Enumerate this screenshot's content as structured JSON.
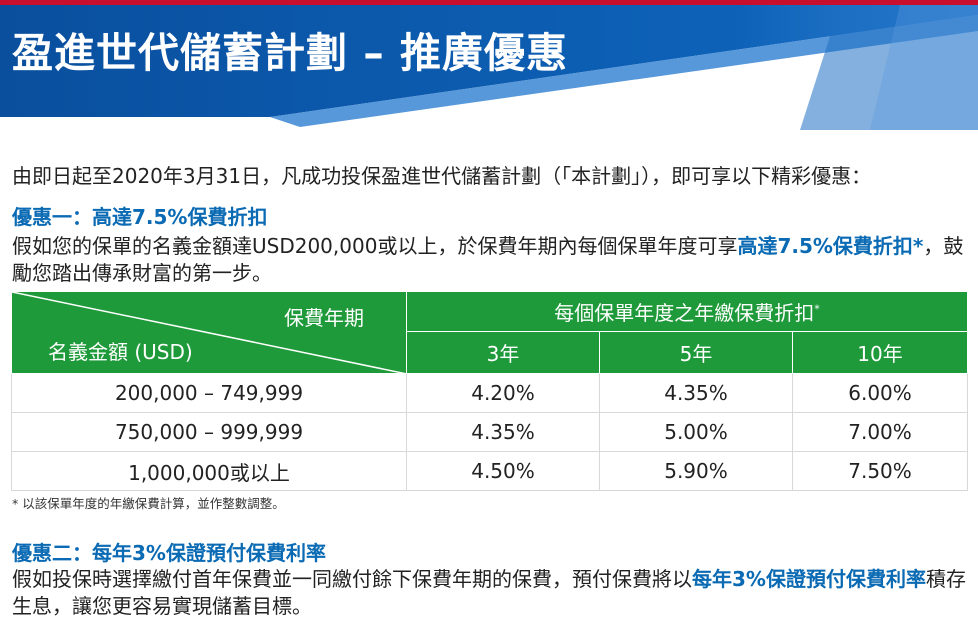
{
  "title": "盈進世代儲蓄計劃 – 推廣優惠",
  "colors": {
    "banner_blue": "#0b5cab",
    "accent_red": "#c8102e",
    "highlight_blue": "#0a6ab3",
    "table_green": "#1f9a3a"
  },
  "intro": "由即日起至2020年3月31日，凡成功投保盈進世代儲蓄計劃（「本計劃」），即可享以下精彩優惠：",
  "offer1": {
    "heading": "優惠一：高達7.5%保費折扣",
    "text_before": "假如您的保單的名義金額達USD200,000或以上，於保費年期內每個保單年度可享",
    "highlight": "高達7.5%保費折扣*",
    "text_after": "，鼓勵您踏出傳承財富的第一步。"
  },
  "table": {
    "corner_top": "保費年期",
    "corner_bottom": "名義金額 (USD)",
    "group_header": "每個保單年度之年繳保費折扣",
    "group_header_mark": "*",
    "columns": [
      "3年",
      "5年",
      "10年"
    ],
    "rows": [
      {
        "amount": "200,000 – 749,999",
        "values": [
          "4.20%",
          "4.35%",
          "6.00%"
        ]
      },
      {
        "amount": "750,000 – 999,999",
        "values": [
          "4.35%",
          "5.00%",
          "7.00%"
        ]
      },
      {
        "amount": "1,000,000或以上",
        "values": [
          "4.50%",
          "5.90%",
          "7.50%"
        ]
      }
    ]
  },
  "footnote": "* 以該保單年度的年繳保費計算，並作整數調整。",
  "offer2": {
    "heading": "優惠二：每年3%保證預付保費利率",
    "text_before": "假如投保時選擇繳付首年保費並一同繳付餘下保費年期的保費，預付保費將以",
    "highlight": "每年3%保證預付保費利率",
    "text_after": "積存生息，讓您更容易實現儲蓄目標。"
  }
}
